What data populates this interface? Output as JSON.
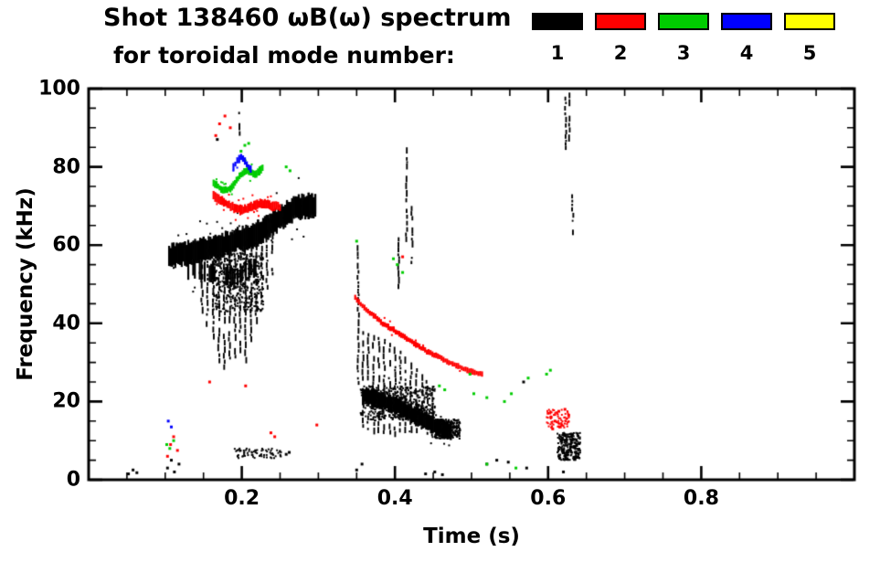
{
  "header": {
    "title_line1": "Shot 138460 ωB(ω) spectrum",
    "title_line2": "for toroidal mode number:"
  },
  "chart_data": {
    "type": "scatter",
    "title": "Shot 138460 ωB(ω) spectrum for toroidal mode number: 1 2 3 4 5",
    "xlabel": "Time (s)",
    "ylabel": "Frequency (kHz)",
    "xlim": [
      0,
      1.0
    ],
    "ylim": [
      0,
      100
    ],
    "xticks_major": [
      0.2,
      0.4,
      0.6,
      0.8
    ],
    "xtick_labels": [
      "0.2",
      "0.4",
      "0.6",
      "0.8"
    ],
    "xticks_minor_step": 0.05,
    "yticks_major": [
      0,
      20,
      40,
      60,
      80,
      100
    ],
    "ytick_labels": [
      "0",
      "20",
      "40",
      "60",
      "80",
      "100"
    ],
    "yticks_minor_step": 5,
    "grid": false,
    "legend_position": "top-right",
    "frame_color": "#000000",
    "series": [
      {
        "name": "toroidal mode n=1",
        "label": "1",
        "color": "#000000",
        "traces": [
          {
            "path": [
              [
                0.105,
                57
              ],
              [
                0.115,
                57.5
              ],
              [
                0.13,
                58
              ],
              [
                0.15,
                59
              ],
              [
                0.17,
                59.5
              ],
              [
                0.19,
                61
              ],
              [
                0.21,
                62
              ],
              [
                0.23,
                64
              ],
              [
                0.25,
                67
              ],
              [
                0.27,
                69.5
              ],
              [
                0.285,
                70
              ],
              [
                0.298,
                70
              ]
            ],
            "thickness": 7,
            "slabs": 2,
            "fray": 0.6
          },
          {
            "path": [
              [
                0.13,
                54
              ],
              [
                0.16,
                53
              ],
              [
                0.19,
                52
              ],
              [
                0.22,
                55
              ]
            ],
            "thickness": 6,
            "slabs": 1,
            "fray": 0.7,
            "p": 0.6
          },
          {
            "path": [
              [
                0.358,
                21.5
              ],
              [
                0.37,
                21
              ],
              [
                0.385,
                20
              ],
              [
                0.4,
                19
              ],
              [
                0.415,
                17.5
              ],
              [
                0.43,
                16
              ],
              [
                0.445,
                14.5
              ],
              [
                0.46,
                13
              ],
              [
                0.475,
                12.5
              ]
            ],
            "thickness": 5,
            "slabs": 2,
            "fray": 0.5
          }
        ],
        "streaks": [
          [
            0.148,
            55,
            44
          ],
          [
            0.155,
            56,
            40
          ],
          [
            0.163,
            57,
            36
          ],
          [
            0.17,
            58,
            30
          ],
          [
            0.177,
            59,
            28
          ],
          [
            0.184,
            60,
            31
          ],
          [
            0.191,
            61,
            29
          ],
          [
            0.198,
            62,
            33
          ],
          [
            0.205,
            61,
            30
          ],
          [
            0.212,
            60,
            36
          ],
          [
            0.219,
            62,
            40
          ],
          [
            0.226,
            63,
            44
          ],
          [
            0.233,
            64,
            48
          ],
          [
            0.24,
            66,
            52
          ],
          [
            0.197,
            96,
            89
          ],
          [
            0.352,
            60,
            25
          ],
          [
            0.405,
            62,
            50
          ],
          [
            0.415,
            85,
            62
          ],
          [
            0.422,
            70,
            55
          ],
          [
            0.358,
            38,
            14
          ],
          [
            0.365,
            37.5,
            13
          ],
          [
            0.372,
            37,
            13
          ],
          [
            0.379,
            36.5,
            12.5
          ],
          [
            0.386,
            36,
            12.5
          ],
          [
            0.393,
            35,
            12
          ],
          [
            0.4,
            34,
            12
          ],
          [
            0.407,
            33,
            12
          ],
          [
            0.414,
            31.5,
            12
          ],
          [
            0.421,
            30,
            12
          ],
          [
            0.428,
            28.5,
            12
          ],
          [
            0.435,
            27,
            11.5
          ],
          [
            0.442,
            25.5,
            11.5
          ],
          [
            0.449,
            24,
            11
          ],
          [
            0.623,
            100,
            84
          ],
          [
            0.628,
            99,
            88
          ],
          [
            0.632,
            73,
            63
          ]
        ],
        "patches": [
          {
            "t0": 0.162,
            "t1": 0.228,
            "f0": 43,
            "f1": 58,
            "n": 420
          },
          {
            "t0": 0.355,
            "t1": 0.452,
            "f0": 15,
            "f1": 24,
            "n": 380
          },
          {
            "t0": 0.452,
            "t1": 0.485,
            "f0": 10.5,
            "f1": 15.5,
            "n": 240
          },
          {
            "t0": 0.612,
            "t1": 0.642,
            "f0": 5,
            "f1": 12,
            "n": 260
          },
          {
            "t0": 0.19,
            "t1": 0.252,
            "f0": 5.5,
            "f1": 8,
            "n": 70
          }
        ],
        "dots": [
          [
            0.052,
            1.5
          ],
          [
            0.058,
            2.5
          ],
          [
            0.063,
            1.8
          ],
          [
            0.103,
            3
          ],
          [
            0.108,
            5
          ],
          [
            0.112,
            2
          ],
          [
            0.118,
            4
          ],
          [
            0.168,
            87
          ],
          [
            0.258,
            6.5
          ],
          [
            0.262,
            7
          ],
          [
            0.35,
            2.5
          ],
          [
            0.357,
            4
          ],
          [
            0.44,
            1.5
          ],
          [
            0.452,
            2
          ],
          [
            0.462,
            1.3
          ],
          [
            0.52,
            4
          ],
          [
            0.533,
            5
          ],
          [
            0.548,
            4.5
          ],
          [
            0.568,
            25
          ],
          [
            0.572,
            3
          ],
          [
            0.62,
            2
          ]
        ]
      },
      {
        "name": "toroidal mode n=2",
        "label": "2",
        "color": "#ff0000",
        "traces": [
          {
            "path": [
              [
                0.163,
                72.5
              ],
              [
                0.172,
                71.5
              ],
              [
                0.181,
                70.5
              ],
              [
                0.19,
                69.5
              ],
              [
                0.2,
                69
              ],
              [
                0.21,
                69.5
              ],
              [
                0.22,
                70.5
              ],
              [
                0.23,
                70.5
              ],
              [
                0.24,
                70
              ],
              [
                0.252,
                69.5
              ]
            ],
            "thickness": 2.8,
            "slabs": 1,
            "fray": 0.4
          },
          {
            "path": [
              [
                0.348,
                46.5
              ],
              [
                0.36,
                44
              ],
              [
                0.372,
                42
              ],
              [
                0.384,
                40
              ],
              [
                0.396,
                38.5
              ],
              [
                0.408,
                37
              ],
              [
                0.42,
                35.5
              ],
              [
                0.432,
                34
              ],
              [
                0.444,
                32.5
              ],
              [
                0.456,
                31.5
              ],
              [
                0.468,
                30.3
              ],
              [
                0.48,
                29.2
              ],
              [
                0.492,
                28.2
              ],
              [
                0.504,
                27.4
              ],
              [
                0.516,
                26.8
              ]
            ],
            "thickness": 1.7,
            "slabs": 1,
            "fray": 0.15
          }
        ],
        "streaks": [],
        "patches": [
          {
            "t0": 0.598,
            "t1": 0.63,
            "f0": 13,
            "f1": 18,
            "n": 70
          }
        ],
        "dots": [
          [
            0.166,
            88
          ],
          [
            0.171,
            91
          ],
          [
            0.178,
            93
          ],
          [
            0.185,
            90
          ],
          [
            0.103,
            6
          ],
          [
            0.107,
            9
          ],
          [
            0.111,
            11
          ],
          [
            0.116,
            7.5
          ],
          [
            0.158,
            25
          ],
          [
            0.205,
            24
          ],
          [
            0.238,
            12
          ],
          [
            0.243,
            11
          ],
          [
            0.298,
            14
          ],
          [
            0.41,
            57
          ],
          [
            0.6,
            17
          ],
          [
            0.604,
            16
          ],
          [
            0.609,
            15
          ],
          [
            0.614,
            17.5
          ],
          [
            0.618,
            14
          ],
          [
            0.606,
            13
          ],
          [
            0.616,
            13.5
          ],
          [
            0.622,
            18
          ],
          [
            0.627,
            16.5
          ]
        ]
      },
      {
        "name": "toroidal mode n=3",
        "label": "3",
        "color": "#00cc00",
        "traces": [
          {
            "path": [
              [
                0.163,
                76
              ],
              [
                0.169,
                75
              ],
              [
                0.175,
                74
              ],
              [
                0.181,
                74
              ],
              [
                0.187,
                75
              ],
              [
                0.193,
                76.5
              ],
              [
                0.199,
                78
              ],
              [
                0.205,
                79
              ],
              [
                0.211,
                79
              ],
              [
                0.217,
                78
              ],
              [
                0.223,
                79
              ],
              [
                0.229,
                80
              ]
            ],
            "thickness": 2.4,
            "slabs": 1,
            "fray": 0.35
          }
        ],
        "streaks": [],
        "patches": [],
        "dots": [
          [
            0.199,
            84
          ],
          [
            0.204,
            85.5
          ],
          [
            0.209,
            86
          ],
          [
            0.258,
            80
          ],
          [
            0.263,
            79
          ],
          [
            0.35,
            61
          ],
          [
            0.398,
            56.5
          ],
          [
            0.403,
            55
          ],
          [
            0.41,
            53
          ],
          [
            0.458,
            24
          ],
          [
            0.465,
            23
          ],
          [
            0.498,
            27
          ],
          [
            0.503,
            22
          ],
          [
            0.52,
            21
          ],
          [
            0.543,
            20
          ],
          [
            0.552,
            22
          ],
          [
            0.574,
            26
          ],
          [
            0.598,
            27
          ],
          [
            0.603,
            28
          ],
          [
            0.102,
            9
          ],
          [
            0.106,
            8
          ],
          [
            0.111,
            10
          ],
          [
            0.52,
            4
          ],
          [
            0.558,
            3
          ]
        ]
      },
      {
        "name": "toroidal mode n=4",
        "label": "4",
        "color": "#0000ff",
        "traces": [
          {
            "path": [
              [
                0.189,
                80
              ],
              [
                0.194,
                81.5
              ],
              [
                0.199,
                82.5
              ],
              [
                0.204,
                81.5
              ],
              [
                0.209,
                80
              ],
              [
                0.214,
                79
              ]
            ],
            "thickness": 2.2,
            "slabs": 1,
            "fray": 0.3
          }
        ],
        "streaks": [],
        "patches": [],
        "dots": [
          [
            0.104,
            15
          ],
          [
            0.108,
            13.5
          ]
        ]
      },
      {
        "name": "toroidal mode n=5",
        "label": "5",
        "color": "#ffff00",
        "traces": [],
        "streaks": [],
        "patches": [],
        "dots": []
      }
    ]
  }
}
